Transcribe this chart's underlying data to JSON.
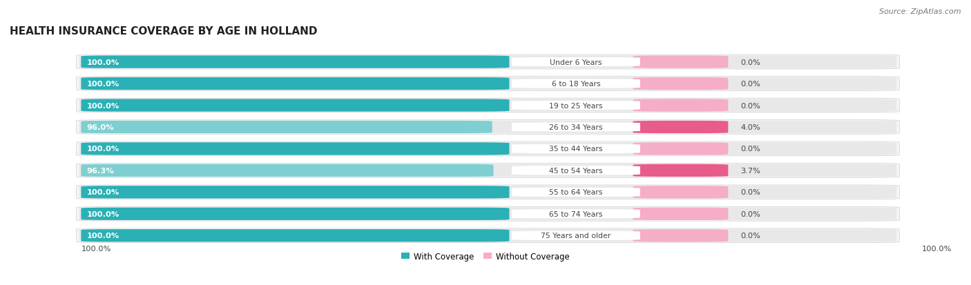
{
  "title": "HEALTH INSURANCE COVERAGE BY AGE IN HOLLAND",
  "source": "Source: ZipAtlas.com",
  "categories": [
    "Under 6 Years",
    "6 to 18 Years",
    "19 to 25 Years",
    "26 to 34 Years",
    "35 to 44 Years",
    "45 to 54 Years",
    "55 to 64 Years",
    "65 to 74 Years",
    "75 Years and older"
  ],
  "with_coverage": [
    100.0,
    100.0,
    100.0,
    96.0,
    100.0,
    96.3,
    100.0,
    100.0,
    100.0
  ],
  "without_coverage": [
    0.0,
    0.0,
    0.0,
    4.0,
    0.0,
    3.7,
    0.0,
    0.0,
    0.0
  ],
  "color_with_full": "#2ab0b5",
  "color_with_light": "#7ecfd1",
  "color_without_highlight": "#e85c8a",
  "color_without_light": "#f5adc8",
  "color_bg_bar": "#e8e8e8",
  "color_bg_outer": "#f5f5f5",
  "title_color": "#222222",
  "source_color": "#777777",
  "label_color_white": "#ffffff",
  "label_color_dark": "#444444",
  "legend_with_color": "#2ab0b5",
  "legend_without_color": "#f5adc8",
  "total_bar_pct": 100.0,
  "cat_label_pct": 10.0,
  "without_bar_pct": 10.0
}
